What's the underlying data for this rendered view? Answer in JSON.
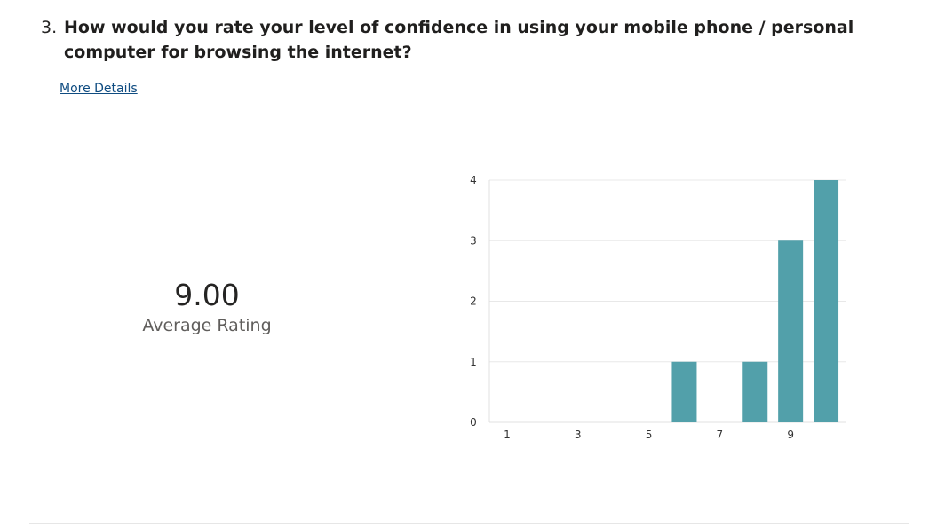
{
  "question": {
    "number": "3.",
    "text": "How would you rate your level of confidence in using your mobile phone / personal computer for browsing the internet?"
  },
  "more_details_label": "More Details",
  "average": {
    "value": "9.00",
    "label": "Average Rating"
  },
  "chart_data": {
    "type": "bar",
    "categories": [
      "1",
      "2",
      "3",
      "4",
      "5",
      "6",
      "7",
      "8",
      "9",
      "10"
    ],
    "x_tick_labels": [
      "1",
      "3",
      "5",
      "7",
      "9"
    ],
    "values": [
      0,
      0,
      0,
      0,
      0,
      1,
      0,
      1,
      3,
      4
    ],
    "ylim": [
      0,
      4
    ],
    "y_ticks": [
      0,
      1,
      2,
      3,
      4
    ],
    "grid": true,
    "bar_color": "#52a0aa",
    "title": "",
    "xlabel": "",
    "ylabel": ""
  }
}
